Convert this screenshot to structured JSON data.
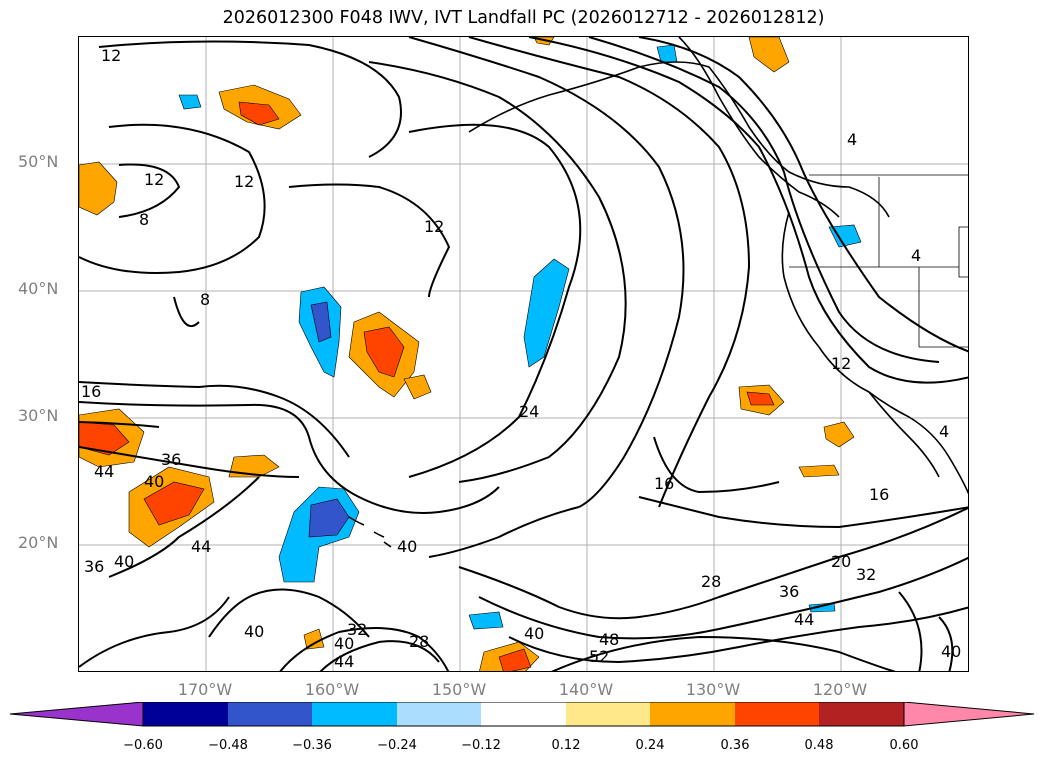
{
  "title": "2026012300 F048 IWV, IVT Landfall PC (2026012712 - 2026012812)",
  "lat_labels": [
    "50°N",
    "40°N",
    "30°N",
    "20°N"
  ],
  "lon_labels": [
    "170°W",
    "160°W",
    "150°W",
    "140°W",
    "130°W",
    "120°W"
  ],
  "colorbar": {
    "ticks": [
      "−0.60",
      "−0.48",
      "−0.36",
      "−0.24",
      "−0.12",
      "0.12",
      "0.24",
      "0.36",
      "0.48",
      "0.60"
    ],
    "colors": [
      "#9933cc",
      "#000099",
      "#3355cc",
      "#00bbff",
      "#aaddff",
      "#ffffff",
      "#ffe88a",
      "#ffa500",
      "#ff4400",
      "#b22222",
      "#ff88aa"
    ],
    "extend": "both"
  },
  "contour_labels": [
    "12",
    "12",
    "12",
    "8",
    "8",
    "12",
    "16",
    "36",
    "40",
    "44",
    "44",
    "36",
    "40",
    "40",
    "24",
    "16",
    "16",
    "20",
    "32",
    "28",
    "36",
    "44",
    "48",
    "52",
    "40",
    "28",
    "32",
    "40",
    "44",
    "40",
    "4",
    "4",
    "12",
    "40",
    "4"
  ],
  "colors": {
    "grid": "#b0b0b0",
    "contour": "#000000",
    "border": "#000000"
  }
}
